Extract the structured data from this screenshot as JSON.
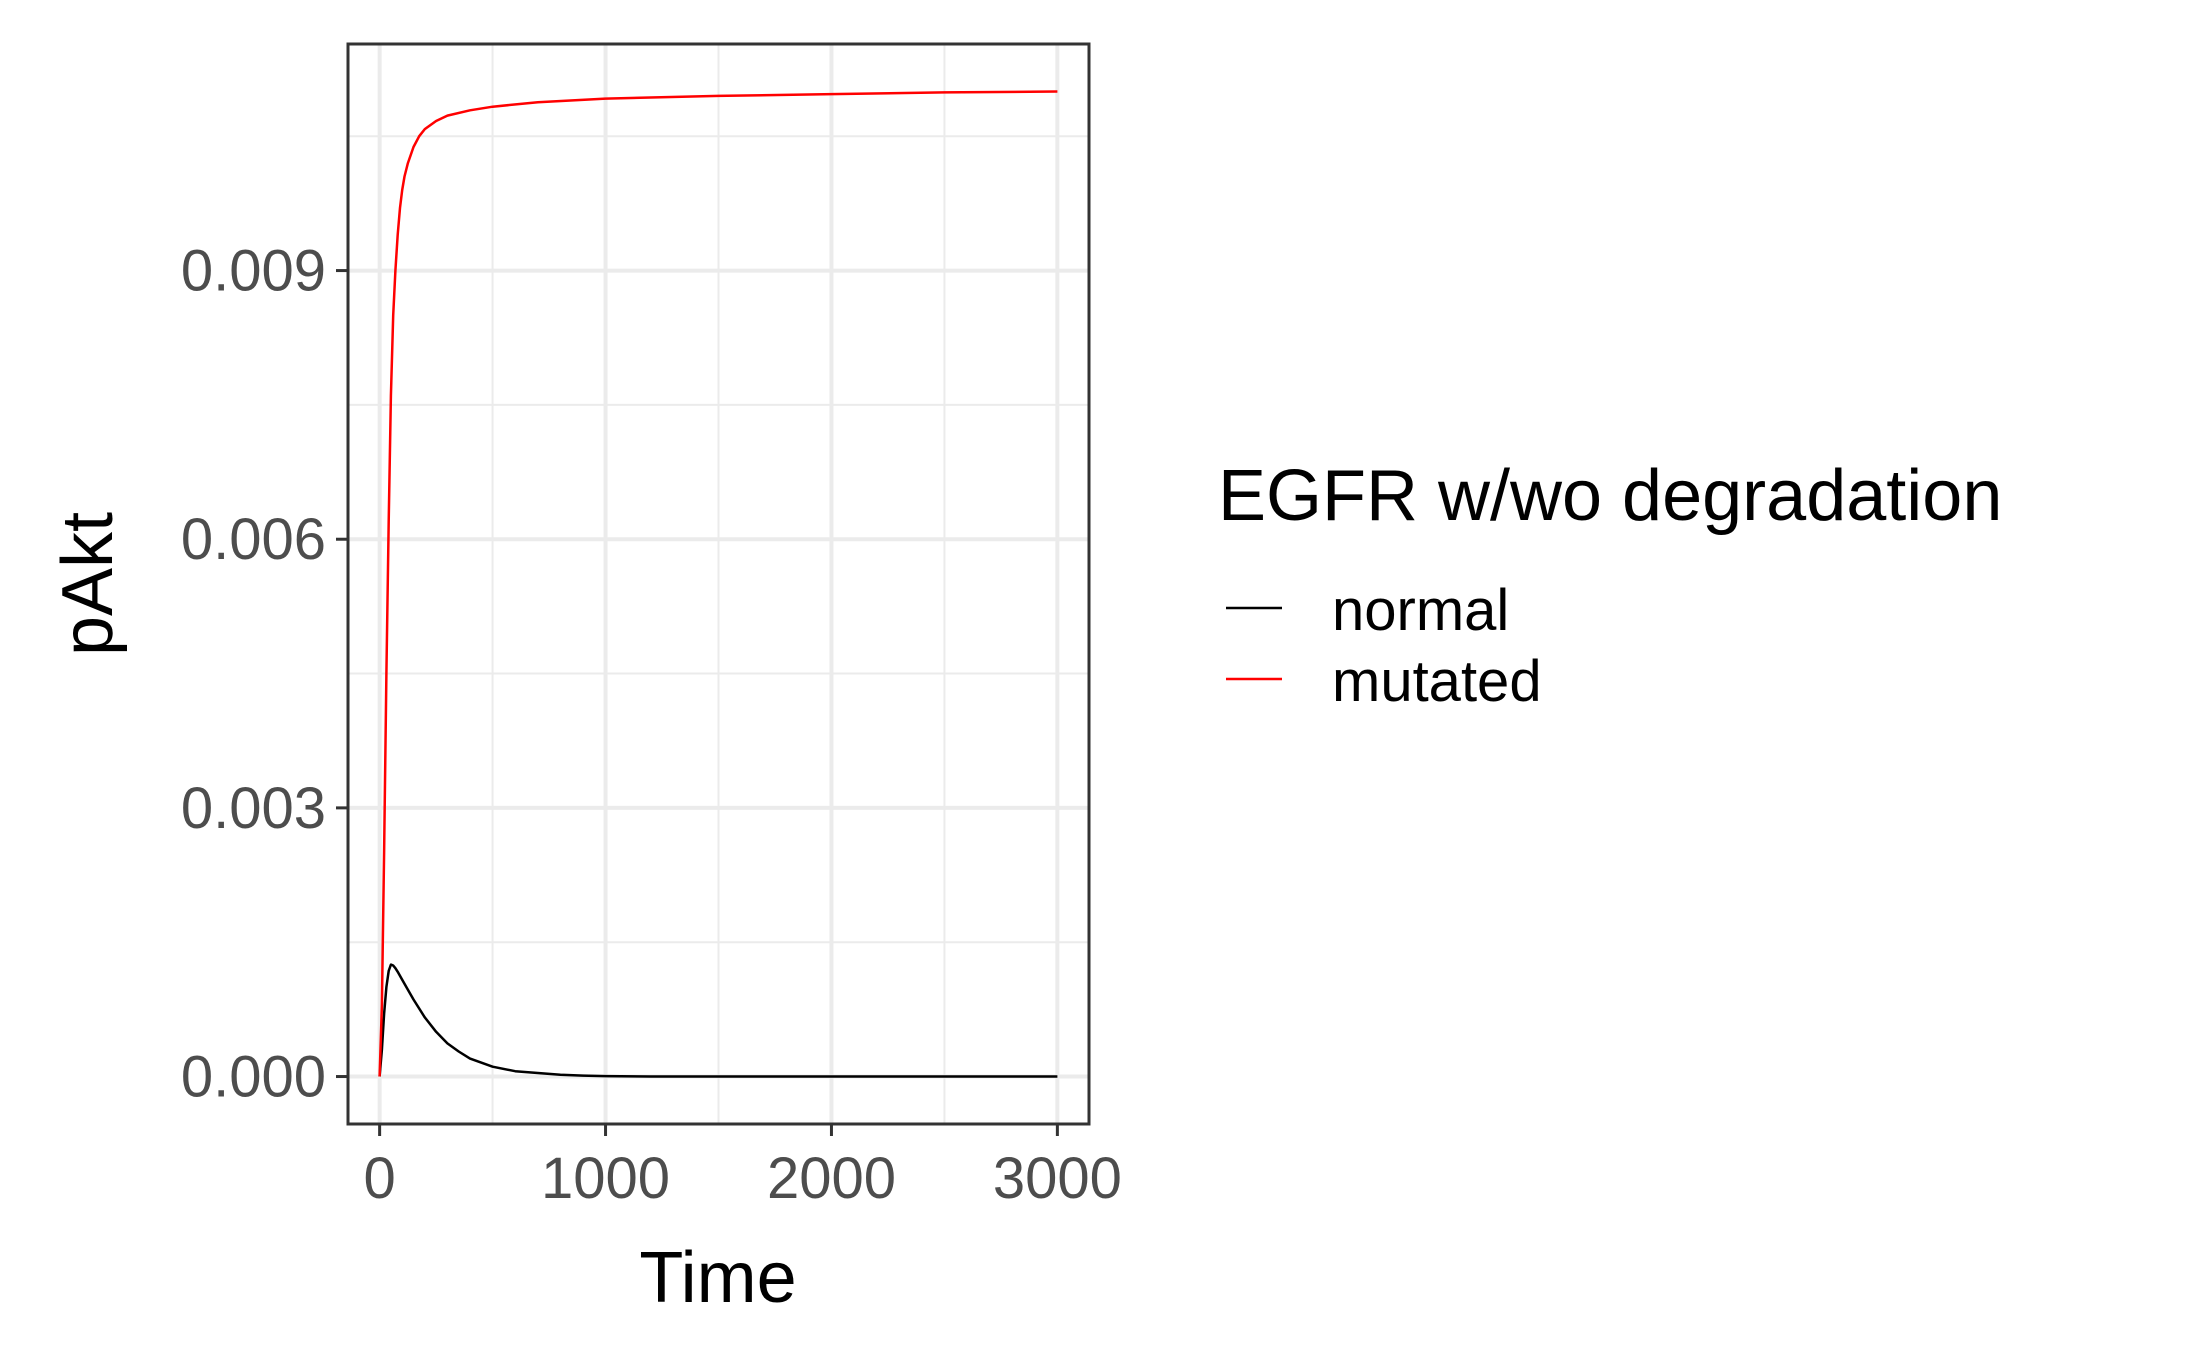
{
  "chart_data": {
    "type": "line",
    "title": "",
    "xlabel": "Time",
    "ylabel": "pAkt",
    "xlim": [
      -140,
      3140
    ],
    "ylim": [
      -0.00053,
      0.01153
    ],
    "x_ticks": [
      0,
      1000,
      2000,
      3000
    ],
    "x_tick_labels": [
      "0",
      "1000",
      "2000",
      "3000"
    ],
    "y_ticks": [
      0.0,
      0.003,
      0.006,
      0.009
    ],
    "y_tick_labels": [
      "0.000",
      "0.003",
      "0.006",
      "0.009"
    ],
    "grid": true,
    "legend": {
      "title": "EGFR w/wo degradation",
      "placement": "right"
    },
    "series": [
      {
        "name": "normal",
        "color": "#000000",
        "x": [
          0,
          10,
          20,
          30,
          40,
          50,
          60,
          70,
          80,
          100,
          125,
          150,
          200,
          250,
          300,
          350,
          400,
          500,
          600,
          700,
          800,
          900,
          1000,
          1200,
          1500,
          2000,
          2500,
          3000
        ],
        "y": [
          0.0,
          0.0003,
          0.0007,
          0.001,
          0.00118,
          0.00125,
          0.00124,
          0.00121,
          0.00117,
          0.00108,
          0.00097,
          0.00086,
          0.00066,
          0.0005,
          0.00037,
          0.00028,
          0.0002,
          0.00011,
          6e-05,
          4e-05,
          2e-05,
          1e-05,
          5e-06,
          0.0,
          0.0,
          0.0,
          0.0,
          0.0
        ]
      },
      {
        "name": "mutated",
        "color": "#ff0000",
        "x": [
          0,
          10,
          20,
          30,
          40,
          50,
          60,
          70,
          80,
          90,
          100,
          110,
          125,
          150,
          175,
          200,
          250,
          300,
          400,
          500,
          700,
          1000,
          1500,
          2000,
          2500,
          3000
        ],
        "y": [
          0.0,
          0.0008,
          0.0025,
          0.0045,
          0.0062,
          0.0076,
          0.0085,
          0.009,
          0.0094,
          0.0097,
          0.0099,
          0.01005,
          0.0102,
          0.01038,
          0.0105,
          0.01058,
          0.01067,
          0.01073,
          0.01079,
          0.01083,
          0.01088,
          0.01092,
          0.01095,
          0.01097,
          0.01099,
          0.011
        ]
      }
    ]
  }
}
